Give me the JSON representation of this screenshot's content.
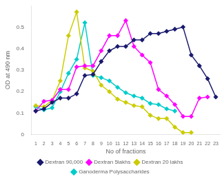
{
  "chart_data": {
    "type": "line",
    "xlabel": "No of fractions",
    "ylabel": "OD at 490 nm",
    "xlim": [
      0.5,
      23.5
    ],
    "ylim": [
      0,
      0.6
    ],
    "xticks": [
      1,
      2,
      3,
      4,
      5,
      6,
      7,
      8,
      9,
      10,
      11,
      12,
      13,
      14,
      15,
      16,
      17,
      18,
      19,
      20,
      21,
      22,
      23
    ],
    "yticks": [
      0,
      0.1,
      0.2,
      0.3,
      0.4,
      0.5
    ],
    "grid": false,
    "legend": "bottom",
    "series": [
      {
        "name": "Dextran 90,000",
        "color": "#1a1a6e",
        "marker": "diamond",
        "x": [
          1,
          2,
          3,
          4,
          5,
          6,
          7,
          8,
          9,
          10,
          11,
          12,
          13,
          14,
          15,
          16,
          17,
          18,
          19,
          20,
          21,
          22,
          23
        ],
        "values": [
          0.11,
          0.12,
          0.15,
          0.17,
          0.17,
          0.19,
          0.275,
          0.28,
          0.34,
          0.39,
          0.41,
          0.41,
          0.44,
          0.44,
          0.47,
          0.47,
          0.48,
          0.49,
          0.5,
          0.37,
          0.32,
          0.26,
          0.175
        ]
      },
      {
        "name": "Dextran 5lakhs",
        "color": "#ff00ff",
        "marker": "diamond",
        "x": [
          1,
          2,
          3,
          4,
          5,
          6,
          7,
          8,
          9,
          10,
          11,
          12,
          13,
          14,
          15,
          16,
          17,
          18,
          19,
          20,
          21,
          22
        ],
        "values": [
          0.11,
          0.155,
          0.16,
          0.21,
          0.21,
          0.315,
          0.32,
          0.32,
          0.39,
          0.46,
          0.46,
          0.53,
          0.41,
          0.37,
          0.335,
          0.21,
          0.18,
          0.14,
          0.085,
          0.085,
          0.17,
          0.175
        ]
      },
      {
        "name": "Dextran 20 lakhs",
        "color": "#cccc00",
        "marker": "diamond",
        "x": [
          1,
          2,
          3,
          4,
          5,
          6,
          7,
          8,
          9,
          10,
          11,
          12,
          13,
          14,
          15,
          16,
          17,
          18,
          19,
          20
        ],
        "values": [
          0.135,
          0.13,
          0.16,
          0.25,
          0.46,
          0.57,
          0.31,
          0.295,
          0.23,
          0.2,
          0.165,
          0.15,
          0.135,
          0.13,
          0.09,
          0.075,
          0.075,
          0.035,
          0.01,
          0.01
        ]
      },
      {
        "name": "Ganoderma Polysaccharides",
        "color": "#00cccc",
        "marker": "diamond",
        "x": [
          1,
          2,
          3,
          4,
          5,
          6,
          7,
          8,
          9,
          10,
          11,
          12,
          13,
          14,
          15,
          16,
          17,
          18
        ],
        "values": [
          0.13,
          0.115,
          0.125,
          0.2,
          0.285,
          0.35,
          0.52,
          0.275,
          0.265,
          0.25,
          0.22,
          0.195,
          0.18,
          0.17,
          0.145,
          0.14,
          0.12,
          0.11
        ]
      }
    ]
  }
}
